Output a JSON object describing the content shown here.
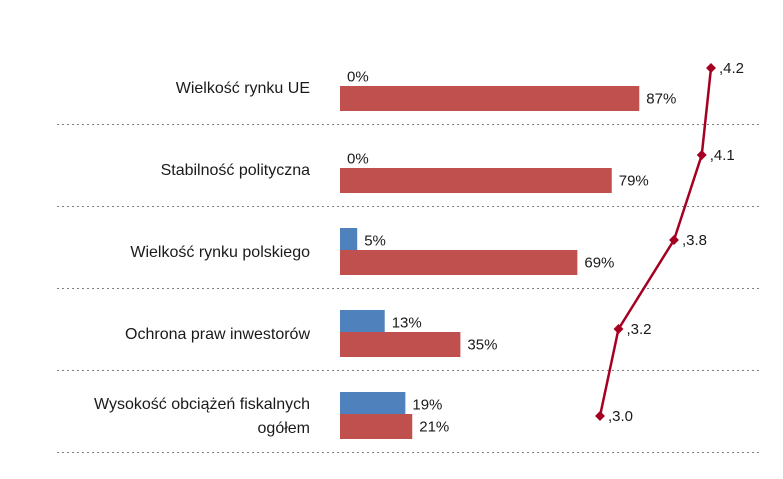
{
  "chart_data": {
    "type": "bar",
    "orientation": "horizontal",
    "categories": [
      [
        "Wielkość rynku UE"
      ],
      [
        "Stabilność polityczna"
      ],
      [
        "Wielkość rynku polskiego"
      ],
      [
        "Ochrona praw inwestorów"
      ],
      [
        "Wysokość obciążeń fiskalnych",
        "ogółem"
      ]
    ],
    "series": [
      {
        "color": "#4f81bd",
        "values": [
          0,
          0,
          5,
          13,
          19
        ],
        "labels": [
          "0%",
          "0%",
          "5%",
          "13%",
          "19%"
        ]
      },
      {
        "color": "#c0504d",
        "values": [
          87,
          79,
          69,
          35,
          21
        ],
        "labels": [
          "87%",
          "79%",
          "69%",
          "35%",
          "21%"
        ]
      }
    ],
    "xlim": [
      0,
      100
    ],
    "line_series": {
      "color": "#a50021",
      "values": [
        4.2,
        4.1,
        3.8,
        3.2,
        3.0
      ],
      "labels": [
        ",4.2",
        ",4.1",
        ",3.8",
        ",3.2",
        ",3.0"
      ]
    },
    "line_xlim": [
      3.0,
      4.2
    ],
    "grid": false,
    "legend": "none"
  }
}
